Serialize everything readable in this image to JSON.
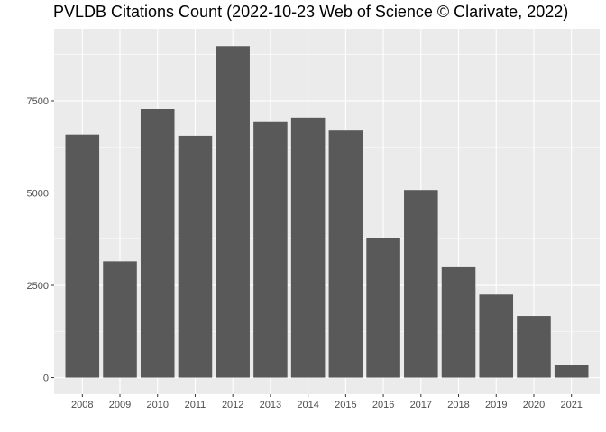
{
  "chart_data": {
    "type": "bar",
    "title": "PVLDB Citations Count (2022-10-23 Web of Science © Clarivate, 2022)",
    "xlabel": "",
    "ylabel": "",
    "categories": [
      "2008",
      "2009",
      "2010",
      "2011",
      "2012",
      "2013",
      "2014",
      "2015",
      "2016",
      "2017",
      "2018",
      "2019",
      "2020",
      "2021"
    ],
    "values": [
      6580,
      3150,
      7280,
      6550,
      8980,
      6920,
      7040,
      6690,
      3790,
      5080,
      2990,
      2250,
      1670,
      340
    ],
    "y_ticks": [
      0,
      2500,
      5000,
      7500
    ],
    "y_tick_labels": [
      "0",
      "2500",
      "5000",
      "7500"
    ],
    "ylim": [
      -450,
      9450
    ],
    "grid": true,
    "colors": {
      "panel_background": "#ebebeb",
      "grid": "#ffffff",
      "bar": "#595959",
      "tick_text": "#4d4d4d"
    }
  }
}
